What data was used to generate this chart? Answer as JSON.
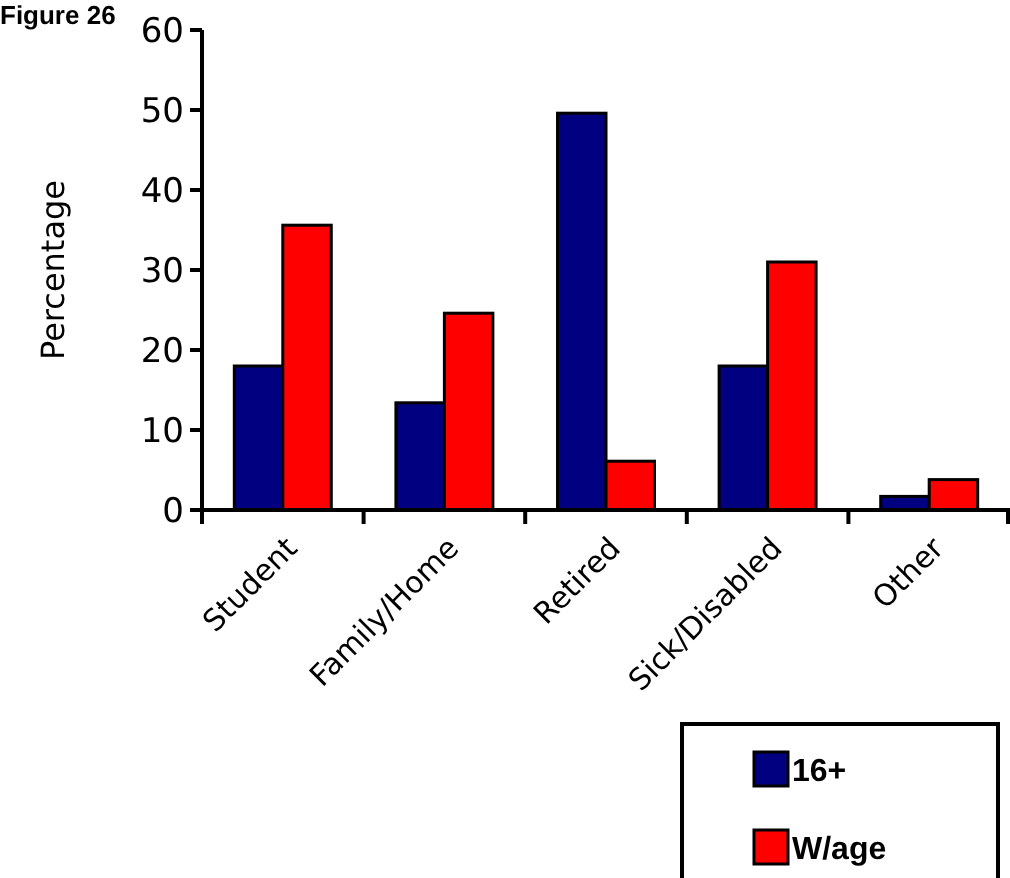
{
  "chart_data": {
    "type": "bar",
    "title": "Figure 26",
    "ylabel": "Percentage",
    "categories": [
      "Student",
      "Family/Home",
      "Retired",
      "Sick/Disabled",
      "Other"
    ],
    "series": [
      {
        "name": "16+",
        "color": "#000080",
        "values": [
          18,
          13.4,
          49.6,
          18,
          1.7
        ]
      },
      {
        "name": "W/age",
        "color": "#ff0000",
        "values": [
          35.6,
          24.6,
          6.1,
          31,
          3.8
        ]
      }
    ],
    "ylim": [
      0,
      60
    ],
    "yticks": [
      0,
      10,
      20,
      30,
      40,
      50,
      60
    ],
    "grid": false,
    "legend": "bottom right"
  }
}
